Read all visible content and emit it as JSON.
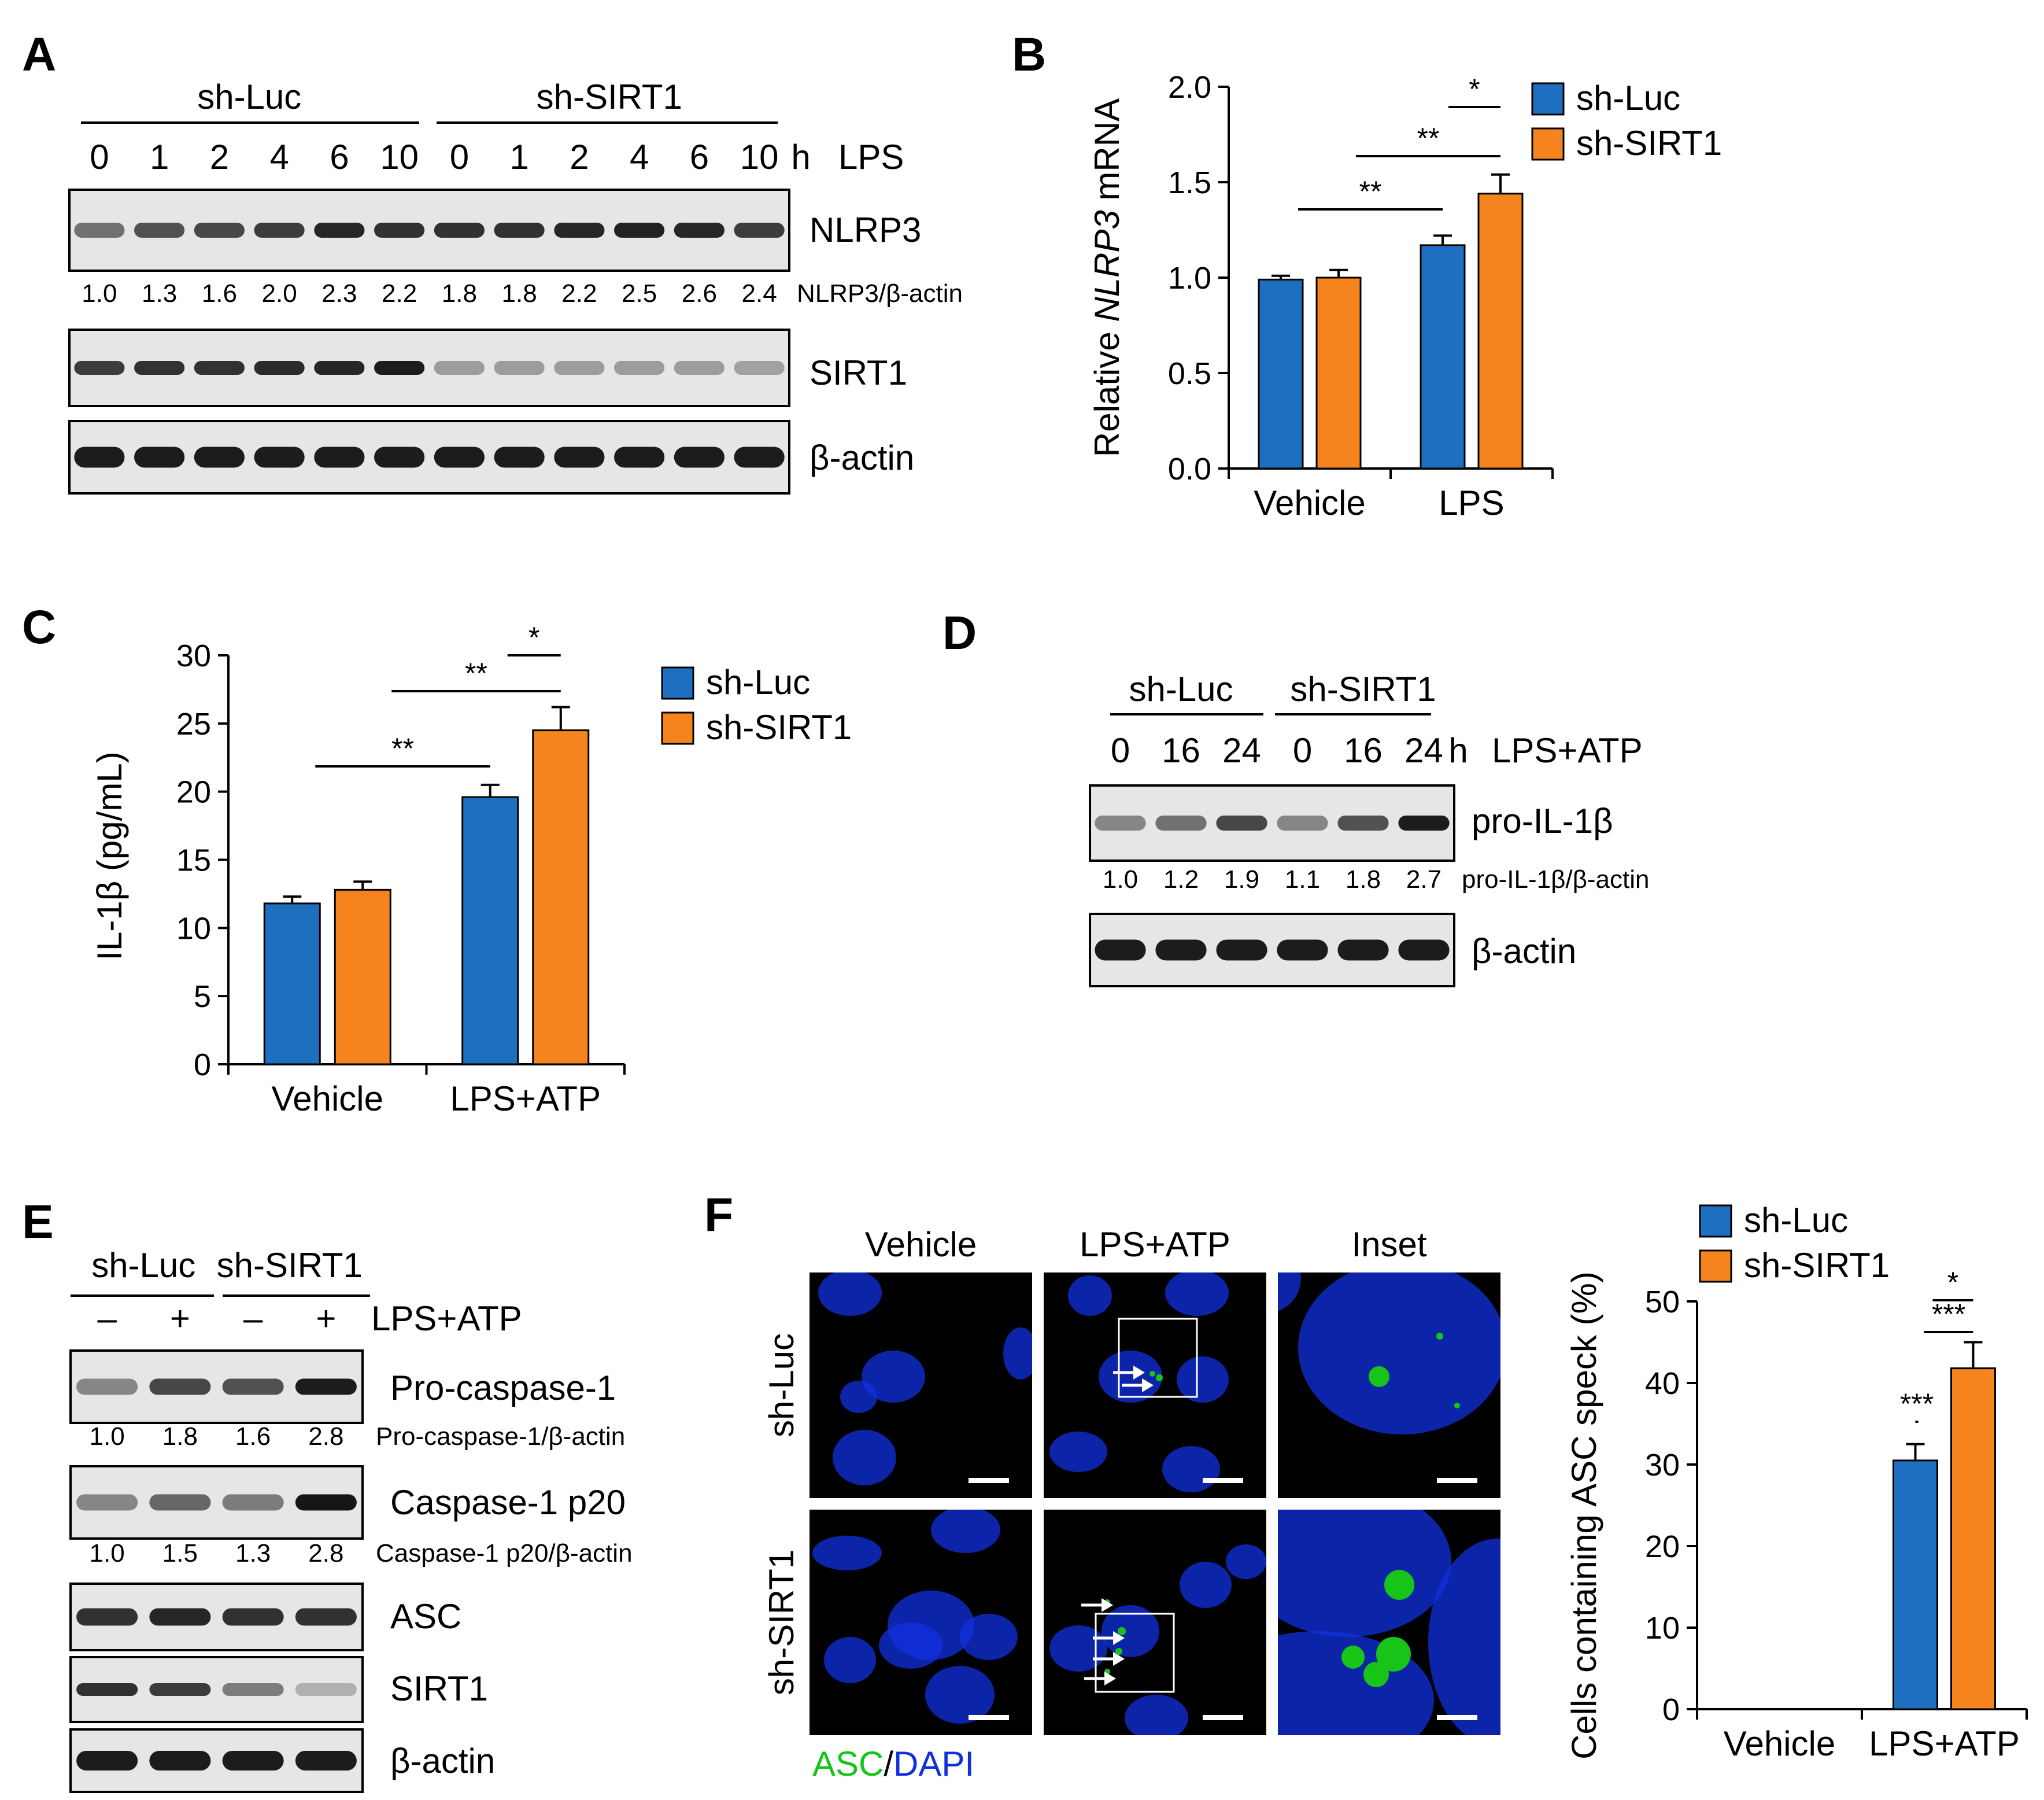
{
  "colors": {
    "sh_luc": "#1f6fc1",
    "sh_sirt1": "#f5841f",
    "asc": "#18c418",
    "dapi": "#1030e0"
  },
  "panels": {
    "A": {
      "letter": "A",
      "groups": [
        "sh-Luc",
        "sh-SIRT1"
      ],
      "time_values": [
        "0",
        "1",
        "2",
        "4",
        "6",
        "10",
        "0",
        "1",
        "2",
        "4",
        "6",
        "10"
      ],
      "time_unit": "h",
      "treatment": "LPS",
      "blots": [
        "NLRP3",
        "SIRT1",
        "β-actin"
      ],
      "ratio_label": "NLRP3/β-actin",
      "ratios": [
        "1.0",
        "1.3",
        "1.6",
        "2.0",
        "2.3",
        "2.2",
        "1.8",
        "1.8",
        "2.2",
        "2.5",
        "2.6",
        "2.4"
      ]
    },
    "B": {
      "letter": "B"
    },
    "C": {
      "letter": "C"
    },
    "D": {
      "letter": "D",
      "groups": [
        "sh-Luc",
        "sh-SIRT1"
      ],
      "time_values": [
        "0",
        "16",
        "24",
        "0",
        "16",
        "24"
      ],
      "time_unit": "h",
      "treatment": "LPS+ATP",
      "blots": [
        "pro-IL-1β",
        "β-actin"
      ],
      "ratio_label": "pro-IL-1β/β-actin",
      "ratios": [
        "1.0",
        "1.2",
        "1.9",
        "1.1",
        "1.8",
        "2.7"
      ]
    },
    "E": {
      "letter": "E",
      "groups": [
        "sh-Luc",
        "sh-SIRT1"
      ],
      "signs": [
        "–",
        "+",
        "–",
        "+"
      ],
      "treatment": "LPS+ATP",
      "blots": [
        "Pro-caspase-1",
        "Caspase-1 p20",
        "ASC",
        "SIRT1",
        "β-actin"
      ],
      "ratio_label_1": "Pro-caspase-1/β-actin",
      "ratios_1": [
        "1.0",
        "1.8",
        "1.6",
        "2.8"
      ],
      "ratio_label_2": "Caspase-1 p20/β-actin",
      "ratios_2": [
        "1.0",
        "1.5",
        "1.3",
        "2.8"
      ]
    },
    "F": {
      "letter": "F",
      "column_labels": [
        "Vehicle",
        "LPS+ATP",
        "Inset"
      ],
      "row_labels": [
        "sh-Luc",
        "sh-SIRT1"
      ],
      "stain_asc": "ASC",
      "stain_sep": "/",
      "stain_dapi": "DAPI"
    }
  },
  "chart_data": [
    {
      "id": "B",
      "type": "bar",
      "categories": [
        "Vehicle",
        "LPS"
      ],
      "series": [
        {
          "name": "sh-Luc",
          "values": [
            0.99,
            1.17
          ],
          "errors": [
            0.02,
            0.05
          ]
        },
        {
          "name": "sh-SIRT1",
          "values": [
            1.0,
            1.44
          ],
          "errors": [
            0.04,
            0.1
          ]
        }
      ],
      "ylabel_prefix": "Relative ",
      "ylabel_gene": "NLRP3",
      "ylabel_suffix": " mRNA",
      "ylim": [
        0,
        2.0
      ],
      "yticks": [
        "0.0",
        "0.5",
        "1.0",
        "1.5",
        "2.0"
      ],
      "legend": "top-right",
      "significance": [
        {
          "label": "**",
          "from": 0,
          "to": 2
        },
        {
          "label": "**",
          "from": 1,
          "to": 3
        },
        {
          "label": "*",
          "from": 2,
          "to": 3
        }
      ]
    },
    {
      "id": "C",
      "type": "bar",
      "categories": [
        "Vehicle",
        "LPS+ATP"
      ],
      "series": [
        {
          "name": "sh-Luc",
          "values": [
            11.8,
            19.6
          ],
          "errors": [
            0.5,
            0.9
          ]
        },
        {
          "name": "sh-SIRT1",
          "values": [
            12.8,
            24.5
          ],
          "errors": [
            0.6,
            1.7
          ]
        }
      ],
      "ylabel": "IL-1β (pg/mL)",
      "ylim": [
        0,
        30
      ],
      "yticks": [
        "0",
        "5",
        "10",
        "15",
        "20",
        "25",
        "30"
      ],
      "legend": "top-right",
      "significance": [
        {
          "label": "**",
          "from": 0,
          "to": 2
        },
        {
          "label": "**",
          "from": 1,
          "to": 3
        },
        {
          "label": "*",
          "from": 2,
          "to": 3
        }
      ]
    },
    {
      "id": "F",
      "type": "bar",
      "categories": [
        "Vehicle",
        "LPS+ATP"
      ],
      "series": [
        {
          "name": "sh-Luc",
          "values": [
            0,
            30.5
          ],
          "errors": [
            0,
            2.0
          ]
        },
        {
          "name": "sh-SIRT1",
          "values": [
            0,
            41.8
          ],
          "errors": [
            0,
            3.2
          ]
        }
      ],
      "ylabel": "Cells containing ASC speck (%)",
      "ylim": [
        0,
        50
      ],
      "yticks": [
        "0",
        "10",
        "20",
        "30",
        "40",
        "50"
      ],
      "legend": "top-right",
      "significance": [
        {
          "label": "***",
          "from": 0,
          "to": 2
        },
        {
          "label": "***",
          "from": 1,
          "to": 3
        },
        {
          "label": "*",
          "from": 2,
          "to": 3
        }
      ]
    }
  ]
}
